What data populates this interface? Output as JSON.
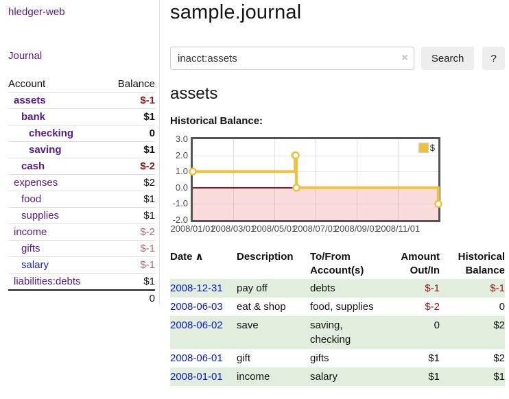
{
  "colors": {
    "link_purple": "#551a8b",
    "link_blue": "#0a18cc",
    "negative_strong": "#971616",
    "negative_pale": "#b06a6a",
    "row_green": "#e1eedd",
    "series_gold": "#edc240",
    "negative_region_pink": "#fbdcdc",
    "zero_line_red": "#991818",
    "button_gray": "#ededed"
  },
  "sidebar": {
    "brand": "hledger-web",
    "journal_link": "Journal",
    "accounts": {
      "headers": {
        "account": "Account",
        "balance": "Balance"
      },
      "rows": [
        {
          "name": "assets",
          "balance": "$-1"
        },
        {
          "name": "bank",
          "balance": "$1"
        },
        {
          "name": "checking",
          "balance": "0"
        },
        {
          "name": "saving",
          "balance": "$1"
        },
        {
          "name": "cash",
          "balance": "$-2"
        },
        {
          "name": "expenses",
          "balance": "$2"
        },
        {
          "name": "food",
          "balance": "$1"
        },
        {
          "name": "supplies",
          "balance": "$1"
        },
        {
          "name": "income",
          "balance": "$-2"
        },
        {
          "name": "gifts",
          "balance": "$-1"
        },
        {
          "name": "salary",
          "balance": "$-1"
        },
        {
          "name": "liabilities:debts",
          "balance": "$1"
        }
      ],
      "total": "0"
    }
  },
  "main": {
    "title": "sample.journal",
    "search": {
      "value": "inacct:assets",
      "clear_icon": "×",
      "button_label": "Search",
      "help_label": "?"
    },
    "account_heading": "assets",
    "chart_label": "Historical Balance:"
  },
  "chart_data": {
    "type": "line",
    "step": true,
    "title": "Historical Balance:",
    "legend": {
      "label": "$",
      "position": "top-right"
    },
    "ylim": [
      -2,
      3
    ],
    "yticks": [
      {
        "v": 3,
        "label": "3.0"
      },
      {
        "v": 2,
        "label": "2.0"
      },
      {
        "v": 1,
        "label": "1.0"
      },
      {
        "v": 0,
        "label": "0.0"
      },
      {
        "v": -1,
        "label": "-1.0"
      },
      {
        "v": -2,
        "label": "-2.0"
      }
    ],
    "xlim_days": [
      0,
      365
    ],
    "xticks": [
      {
        "day": 0,
        "label": "2008/01/01"
      },
      {
        "day": 60,
        "label": "2008/03/01"
      },
      {
        "day": 121,
        "label": "2008/05/01"
      },
      {
        "day": 182,
        "label": "2008/07/01"
      },
      {
        "day": 244,
        "label": "2008/09/01"
      },
      {
        "day": 305,
        "label": "2008/11/01"
      }
    ],
    "series": [
      {
        "name": "$",
        "color": "#edc240",
        "x": [
          "2008-01-01",
          "2008-06-01",
          "2008-06-02",
          "2008-06-03",
          "2008-12-31"
        ],
        "x_days": [
          0,
          152,
          153,
          154,
          365
        ],
        "values": [
          1,
          2,
          2,
          0,
          -1
        ]
      }
    ],
    "grid": true,
    "negative_region_below": 0
  },
  "register": {
    "headers": {
      "date": "Date",
      "sort_caret": "∧",
      "description": "Description",
      "accounts": "To/From Account(s)",
      "amount": "Amount Out/In",
      "balance": "Historical Balance"
    },
    "rows": [
      {
        "date": "2008-12-31",
        "description": "pay off",
        "accounts": "debts",
        "amount": "$-1",
        "balance": "$-1"
      },
      {
        "date": "2008-06-03",
        "description": "eat & shop",
        "accounts": "food, supplies",
        "amount": "$-2",
        "balance": "0"
      },
      {
        "date": "2008-06-02",
        "description": "save",
        "accounts": "saving, checking",
        "amount": "0",
        "balance": "$2"
      },
      {
        "date": "2008-06-01",
        "description": "gift",
        "accounts": "gifts",
        "amount": "$1",
        "balance": "$2"
      },
      {
        "date": "2008-01-01",
        "description": "income",
        "accounts": "salary",
        "amount": "$1",
        "balance": "$1"
      }
    ]
  }
}
